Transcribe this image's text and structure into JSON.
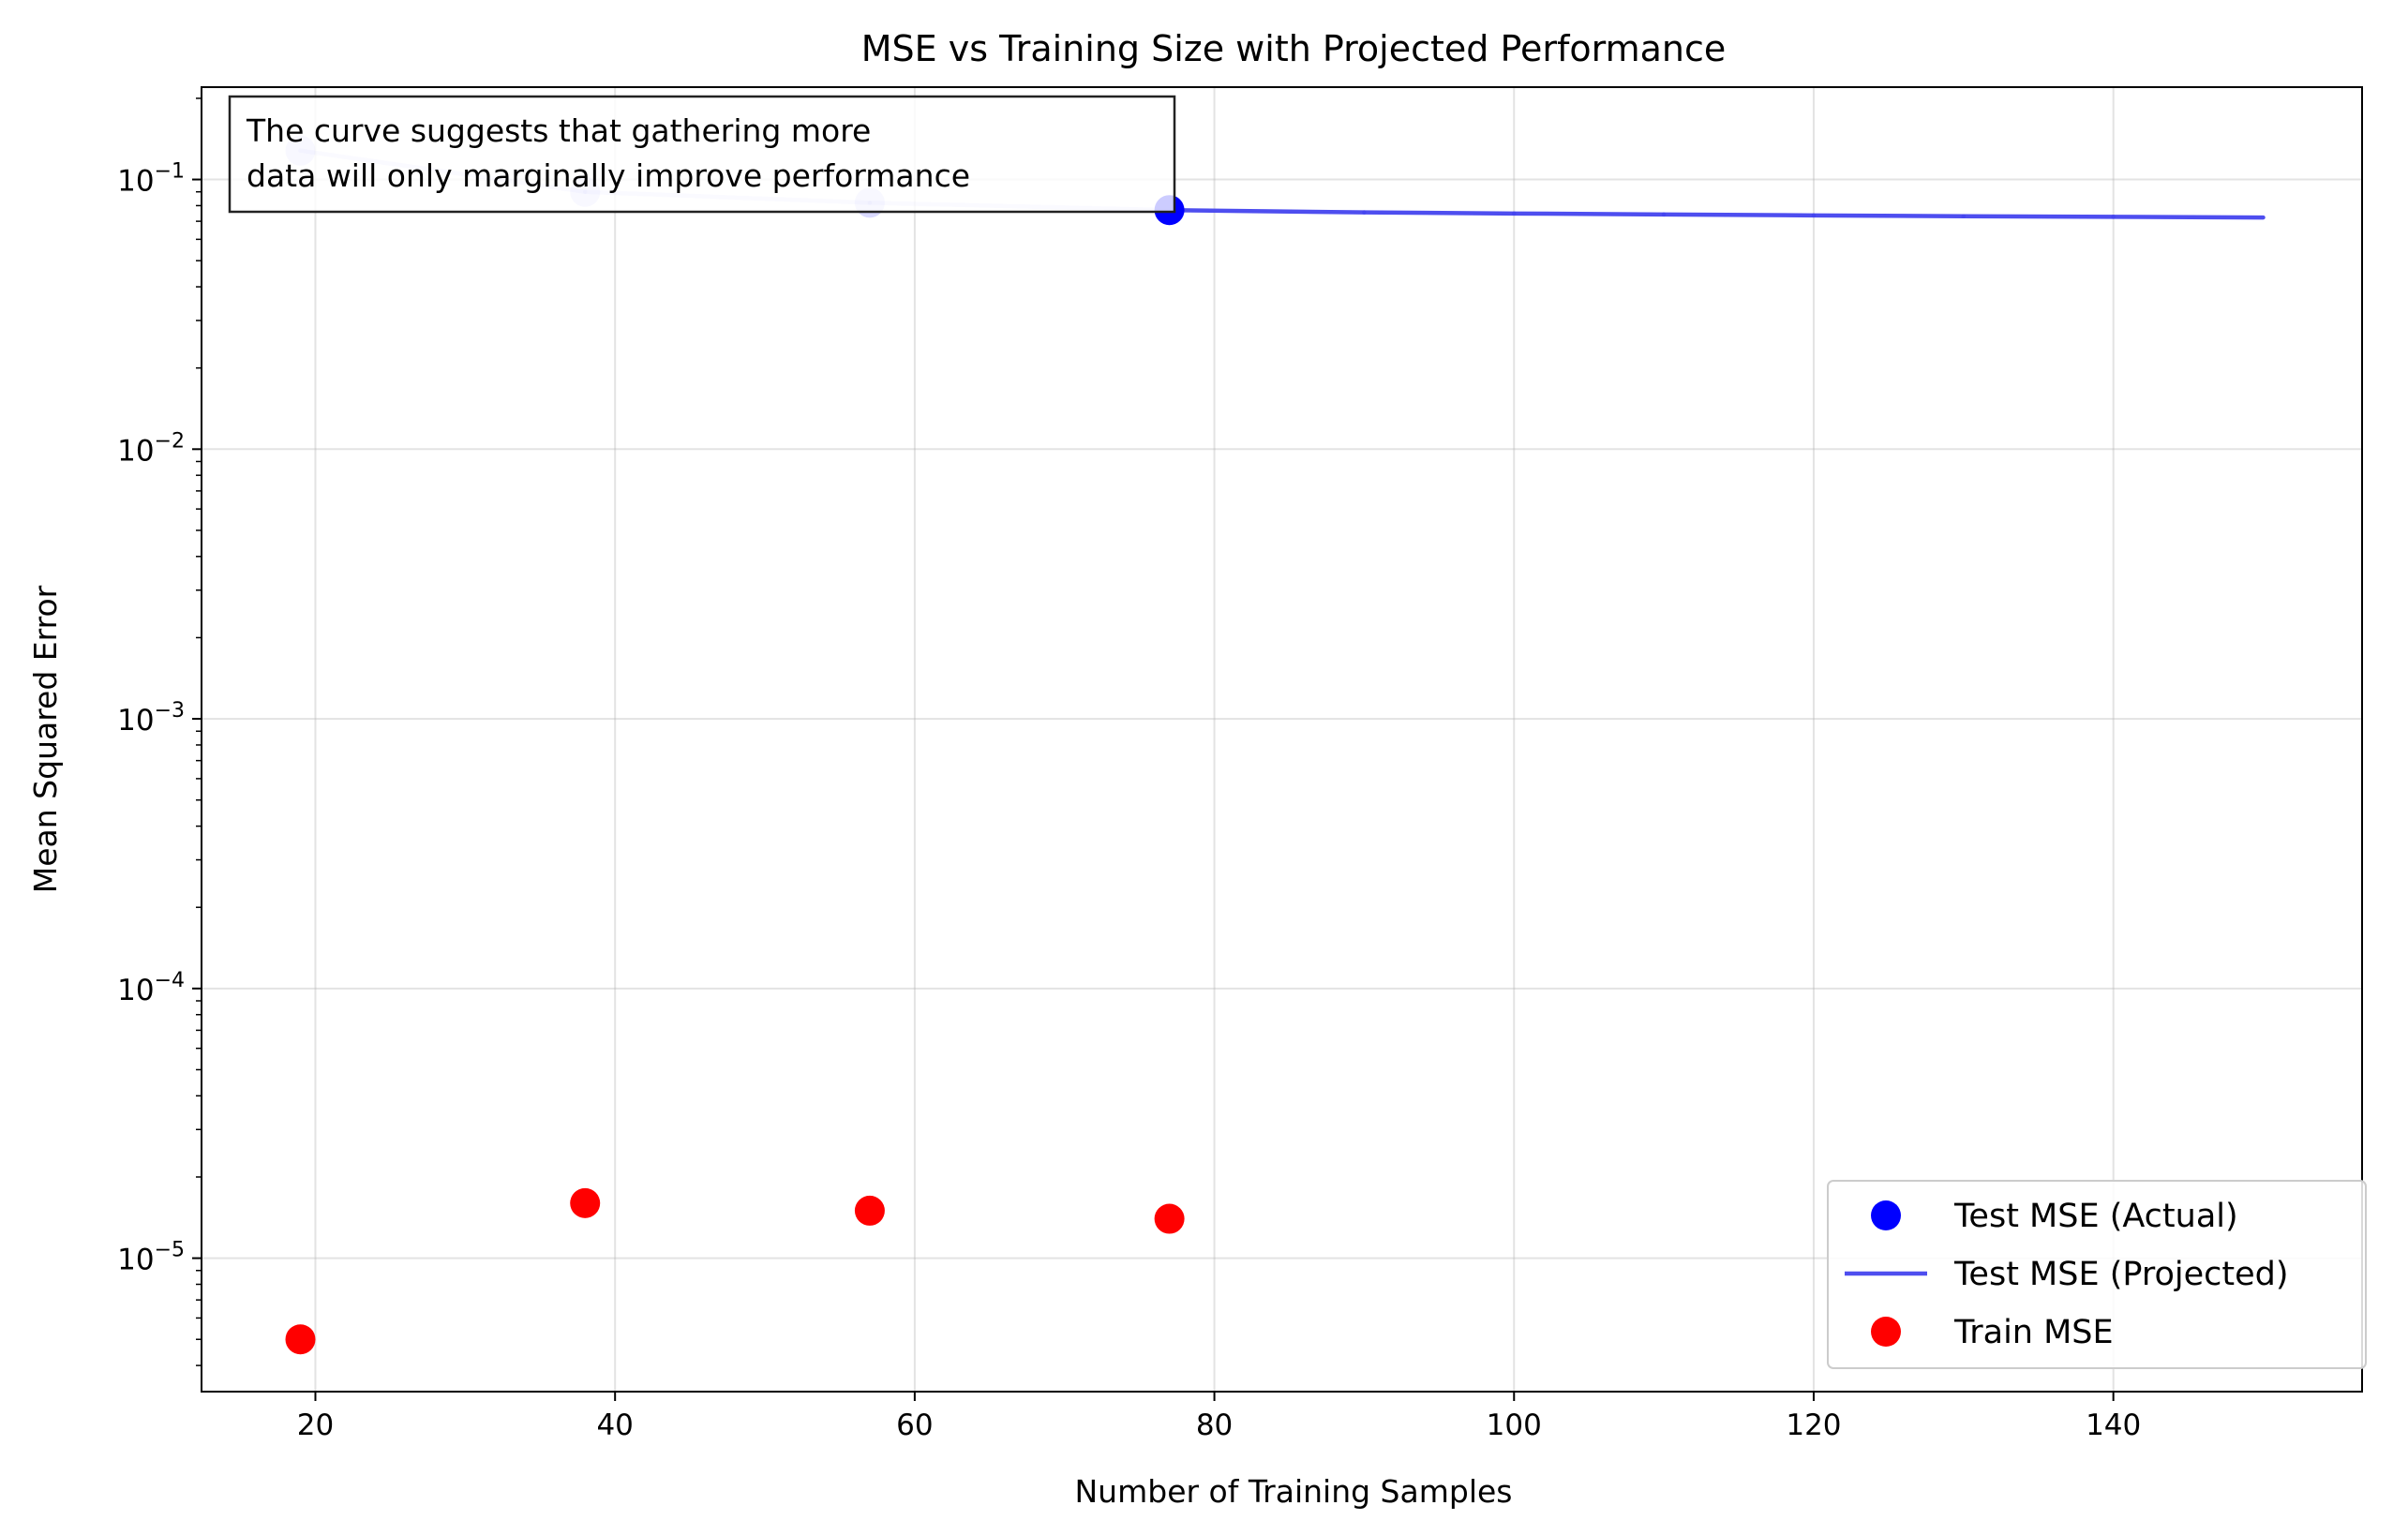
{
  "chart_data": {
    "type": "scatter",
    "title": "MSE vs Training Size with Projected Performance",
    "xlabel": "Number of Training Samples",
    "ylabel": "Mean Squared Error",
    "x_scale": "linear",
    "y_scale": "log",
    "xlim": [
      12.4,
      156.6
    ],
    "ylim": [
      3.2e-06,
      0.22
    ],
    "x_ticks": [
      20,
      40,
      60,
      80,
      100,
      120,
      140
    ],
    "y_ticks": [
      {
        "value": 1e-05,
        "base": "10",
        "exp": "−5"
      },
      {
        "value": 0.0001,
        "base": "10",
        "exp": "−4"
      },
      {
        "value": 0.001,
        "base": "10",
        "exp": "−3"
      },
      {
        "value": 0.01,
        "base": "10",
        "exp": "−2"
      },
      {
        "value": 0.1,
        "base": "10",
        "exp": "−1"
      }
    ],
    "grid": true,
    "legend_position": "lower right",
    "series": [
      {
        "name": "Test MSE (Actual)",
        "kind": "marker",
        "color": "#0000ff",
        "x": [
          19,
          38,
          57,
          77
        ],
        "y": [
          0.128,
          0.09,
          0.082,
          0.077
        ],
        "point_alpha": [
          0.15,
          0.15,
          0.15,
          1.0
        ]
      },
      {
        "name": "Test MSE (Projected)",
        "kind": "line",
        "color": "#4444ee",
        "x": [
          19,
          38,
          57,
          77,
          90,
          100,
          110,
          120,
          130,
          140,
          150
        ],
        "y": [
          0.128,
          0.09,
          0.082,
          0.077,
          0.0755,
          0.0748,
          0.0742,
          0.0736,
          0.0731,
          0.0727,
          0.0723
        ],
        "segment_alpha": [
          0.15,
          0.15,
          0.15,
          0.95,
          0.95,
          0.95,
          0.95,
          0.95,
          0.95,
          0.95
        ]
      },
      {
        "name": "Train MSE",
        "kind": "marker",
        "color": "#ff0000",
        "x": [
          19,
          38,
          57,
          77
        ],
        "y": [
          5e-06,
          1.6e-05,
          1.5e-05,
          1.4e-05
        ]
      }
    ],
    "annotation": {
      "lines": [
        "The curve suggests that gathering more",
        "data will only marginally improve performance"
      ],
      "position": "top-left"
    }
  }
}
